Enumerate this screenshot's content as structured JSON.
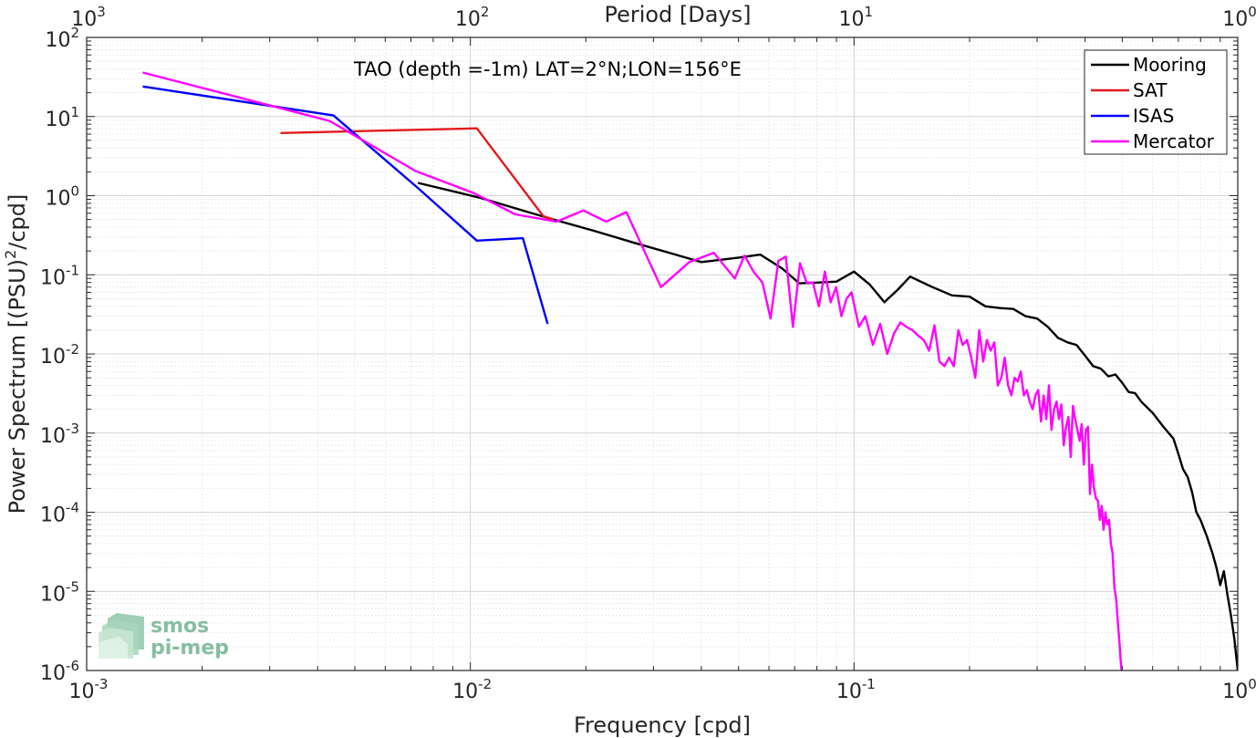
{
  "chart_data": {
    "type": "line",
    "xlabel": "Frequency [cpd]",
    "ylabel": "Power Spectrum [(PSU)",
    "ylabel_sup": "2",
    "ylabel_tail": "/cpd]",
    "x2label": "Period [Days]",
    "annotation": "TAO (depth =-1m) LAT=2°N;LON=156°E",
    "x_scale": "log",
    "y_scale": "log",
    "xlim": [
      0.001,
      1
    ],
    "ylim": [
      1e-06,
      100
    ],
    "grid": true,
    "legend_position": "top-right",
    "x_ticks": [
      {
        "base": "10",
        "exp": "-3",
        "value": 0.001
      },
      {
        "base": "10",
        "exp": "-2",
        "value": 0.01
      },
      {
        "base": "10",
        "exp": "-1",
        "value": 0.1
      },
      {
        "base": "10",
        "exp": "0",
        "value": 1
      }
    ],
    "y_ticks": [
      {
        "base": "10",
        "exp": "2",
        "value": 100
      },
      {
        "base": "10",
        "exp": "1",
        "value": 10
      },
      {
        "base": "10",
        "exp": "0",
        "value": 1
      },
      {
        "base": "10",
        "exp": "-1",
        "value": 0.1
      },
      {
        "base": "10",
        "exp": "-2",
        "value": 0.01
      },
      {
        "base": "10",
        "exp": "-3",
        "value": 0.001
      },
      {
        "base": "10",
        "exp": "-4",
        "value": 0.0001
      },
      {
        "base": "10",
        "exp": "-5",
        "value": 1e-05
      },
      {
        "base": "10",
        "exp": "-6",
        "value": 1e-06
      }
    ],
    "x2_ticks": [
      {
        "base": "10",
        "exp": "3",
        "value": 1000
      },
      {
        "base": "10",
        "exp": "2",
        "value": 100
      },
      {
        "base": "10",
        "exp": "1",
        "value": 10
      },
      {
        "base": "10",
        "exp": "0",
        "value": 1
      }
    ],
    "series": [
      {
        "name": "Mooring",
        "color": "#000000",
        "x": [
          0.0073,
          0.0105,
          0.016,
          0.021,
          0.027,
          0.033,
          0.04,
          0.05,
          0.057,
          0.065,
          0.072,
          0.081,
          0.09,
          0.1,
          0.11,
          0.12,
          0.13,
          0.14,
          0.16,
          0.18,
          0.2,
          0.22,
          0.24,
          0.26,
          0.28,
          0.3,
          0.32,
          0.34,
          0.36,
          0.38,
          0.4,
          0.42,
          0.44,
          0.46,
          0.48,
          0.5,
          0.52,
          0.54,
          0.56,
          0.6,
          0.64,
          0.68,
          0.7,
          0.72,
          0.74,
          0.76,
          0.78,
          0.8,
          0.83,
          0.86,
          0.88,
          0.9,
          0.92,
          0.94,
          0.96,
          0.98,
          1.0
        ],
        "y": [
          1.45,
          0.95,
          0.52,
          0.36,
          0.25,
          0.19,
          0.145,
          0.165,
          0.18,
          0.12,
          0.078,
          0.08,
          0.082,
          0.11,
          0.075,
          0.045,
          0.065,
          0.095,
          0.07,
          0.055,
          0.053,
          0.04,
          0.038,
          0.037,
          0.03,
          0.028,
          0.022,
          0.016,
          0.014,
          0.013,
          0.0095,
          0.007,
          0.0065,
          0.0052,
          0.0055,
          0.0043,
          0.0033,
          0.0032,
          0.0025,
          0.0018,
          0.0012,
          0.00085,
          0.00055,
          0.00035,
          0.00028,
          0.00018,
          0.0001,
          8e-05,
          5e-05,
          3e-05,
          2e-05,
          1.2e-05,
          1.8e-05,
          9e-06,
          5e-06,
          2.5e-06,
          1e-06
        ]
      },
      {
        "name": "SAT",
        "color": "#e31a1c",
        "x": [
          0.0032,
          0.0104,
          0.0155,
          0.0165
        ],
        "y": [
          6.2,
          7.1,
          0.55,
          0.5
        ]
      },
      {
        "name": "ISAS",
        "color": "#0000ff",
        "x": [
          0.0014,
          0.0044,
          0.0073,
          0.0104,
          0.0137,
          0.0159
        ],
        "y": [
          24,
          10.3,
          1.25,
          0.27,
          0.29,
          0.024
        ]
      },
      {
        "name": "Mercator",
        "color": "#ff00ff",
        "x": [
          0.0014,
          0.0043,
          0.0072,
          0.0102,
          0.0131,
          0.0168,
          0.0197,
          0.0226,
          0.0255,
          0.0314,
          0.0372,
          0.0431,
          0.0489,
          0.0518,
          0.0547,
          0.0577,
          0.0606,
          0.0635,
          0.0664,
          0.0693,
          0.0723,
          0.0752,
          0.0781,
          0.081,
          0.0839,
          0.0869,
          0.0898,
          0.0927,
          0.0956,
          0.0985,
          0.103,
          0.107,
          0.112,
          0.117,
          0.122,
          0.127,
          0.132,
          0.137,
          0.142,
          0.147,
          0.152,
          0.157,
          0.162,
          0.167,
          0.172,
          0.177,
          0.182,
          0.187,
          0.192,
          0.197,
          0.202,
          0.207,
          0.212,
          0.217,
          0.222,
          0.227,
          0.232,
          0.237,
          0.242,
          0.247,
          0.252,
          0.257,
          0.262,
          0.267,
          0.272,
          0.277,
          0.282,
          0.287,
          0.292,
          0.297,
          0.302,
          0.307,
          0.312,
          0.317,
          0.322,
          0.327,
          0.332,
          0.337,
          0.342,
          0.347,
          0.352,
          0.357,
          0.362,
          0.367,
          0.372,
          0.377,
          0.382,
          0.387,
          0.392,
          0.397,
          0.402,
          0.407,
          0.412,
          0.417,
          0.422,
          0.427,
          0.432,
          0.437,
          0.442,
          0.447,
          0.452,
          0.457,
          0.462,
          0.467,
          0.472,
          0.477,
          0.482,
          0.487,
          0.492,
          0.495,
          0.498
        ],
        "y": [
          36,
          8.8,
          2.05,
          1.08,
          0.58,
          0.47,
          0.65,
          0.47,
          0.62,
          0.07,
          0.145,
          0.19,
          0.09,
          0.175,
          0.11,
          0.08,
          0.028,
          0.15,
          0.17,
          0.022,
          0.14,
          0.08,
          0.08,
          0.04,
          0.11,
          0.045,
          0.07,
          0.03,
          0.05,
          0.06,
          0.022,
          0.03,
          0.013,
          0.024,
          0.01,
          0.018,
          0.025,
          0.022,
          0.02,
          0.017,
          0.015,
          0.011,
          0.023,
          0.008,
          0.007,
          0.009,
          0.007,
          0.02,
          0.013,
          0.015,
          0.009,
          0.005,
          0.02,
          0.008,
          0.015,
          0.011,
          0.014,
          0.004,
          0.005,
          0.009,
          0.004,
          0.003,
          0.005,
          0.0045,
          0.006,
          0.003,
          0.0035,
          0.0025,
          0.002,
          0.003,
          0.0035,
          0.0014,
          0.003,
          0.0015,
          0.004,
          0.0011,
          0.002,
          0.0025,
          0.0015,
          0.0023,
          0.0007,
          0.0012,
          0.0016,
          0.0005,
          0.0022,
          0.0015,
          0.0011,
          0.0008,
          0.0013,
          0.0004,
          0.0011,
          0.0012,
          0.00017,
          0.0004,
          0.0002,
          0.00015,
          0.00014,
          8e-05,
          0.00012,
          6e-05,
          0.0001,
          7e-05,
          8e-05,
          4e-05,
          3e-05,
          1.1e-05,
          8e-06,
          4e-06,
          2.2e-06,
          1.4e-06,
          1e-06
        ]
      }
    ]
  },
  "logo": {
    "line1": "smos",
    "line2": "pi-mep"
  }
}
